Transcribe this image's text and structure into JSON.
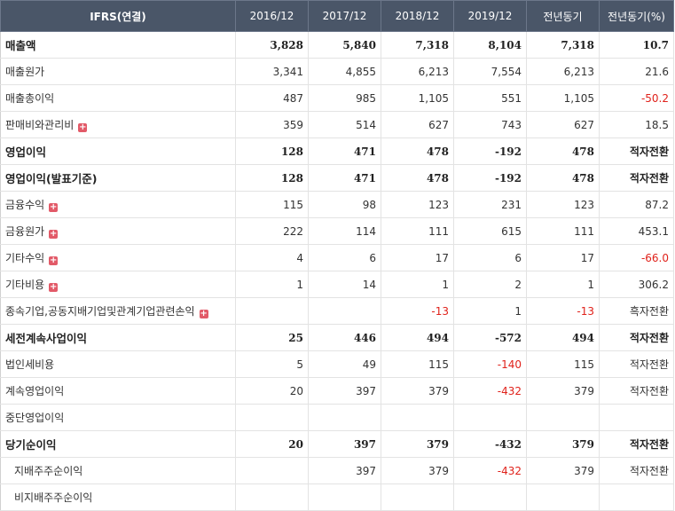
{
  "header": [
    "IFRS(연결)",
    "2016/12",
    "2017/12",
    "2018/12",
    "2019/12",
    "전년동기",
    "전년동기(%)"
  ],
  "rows": [
    {
      "label": "매출액",
      "bold": true,
      "values": [
        "3,828",
        "5,840",
        "7,318",
        "8,104",
        "7,318",
        "10.7"
      ]
    },
    {
      "label": "매출원가",
      "values": [
        "3,341",
        "4,855",
        "6,213",
        "7,554",
        "6,213",
        "21.6"
      ]
    },
    {
      "label": "매출총이익",
      "values": [
        "487",
        "985",
        "1,105",
        "551",
        "1,105",
        "-50.2"
      ]
    },
    {
      "label": "판매비와관리비",
      "expandable": true,
      "values": [
        "359",
        "514",
        "627",
        "743",
        "627",
        "18.5"
      ]
    },
    {
      "label": "영업이익",
      "bold": true,
      "values": [
        "128",
        "471",
        "478",
        "-192",
        "478",
        "적자전환"
      ]
    },
    {
      "label": "영업이익(발표기준)",
      "bold": true,
      "values": [
        "128",
        "471",
        "478",
        "-192",
        "478",
        "적자전환"
      ]
    },
    {
      "label": "금융수익",
      "expandable": true,
      "values": [
        "115",
        "98",
        "123",
        "231",
        "123",
        "87.2"
      ]
    },
    {
      "label": "금융원가",
      "expandable": true,
      "values": [
        "222",
        "114",
        "111",
        "615",
        "111",
        "453.1"
      ]
    },
    {
      "label": "기타수익",
      "expandable": true,
      "values": [
        "4",
        "6",
        "17",
        "6",
        "17",
        "-66.0"
      ]
    },
    {
      "label": "기타비용",
      "expandable": true,
      "values": [
        "1",
        "14",
        "1",
        "2",
        "1",
        "306.2"
      ]
    },
    {
      "label": "종속기업,공동지배기업및관계기업관련손익",
      "expandable": true,
      "values": [
        "",
        "",
        "-13",
        "1",
        "-13",
        "흑자전환"
      ]
    },
    {
      "label": "세전계속사업이익",
      "bold": true,
      "values": [
        "25",
        "446",
        "494",
        "-572",
        "494",
        "적자전환"
      ]
    },
    {
      "label": "법인세비용",
      "values": [
        "5",
        "49",
        "115",
        "-140",
        "115",
        "적자전환"
      ]
    },
    {
      "label": "계속영업이익",
      "values": [
        "20",
        "397",
        "379",
        "-432",
        "379",
        "적자전환"
      ]
    },
    {
      "label": "중단영업이익",
      "values": [
        "",
        "",
        "",
        "",
        "",
        ""
      ]
    },
    {
      "label": "당기순이익",
      "bold": true,
      "values": [
        "20",
        "397",
        "379",
        "-432",
        "379",
        "적자전환"
      ]
    },
    {
      "label": "지배주주순이익",
      "sub": true,
      "values": [
        "",
        "397",
        "379",
        "-432",
        "379",
        "적자전환"
      ]
    },
    {
      "label": "비지배주주순이익",
      "sub": true,
      "values": [
        "",
        "",
        "",
        "",
        "",
        ""
      ]
    }
  ],
  "colors": {
    "header_bg": "#4a5668",
    "negative": "#e0221b",
    "expand_icon": "#e25a68"
  },
  "icons": {
    "expand": "plus-icon"
  }
}
